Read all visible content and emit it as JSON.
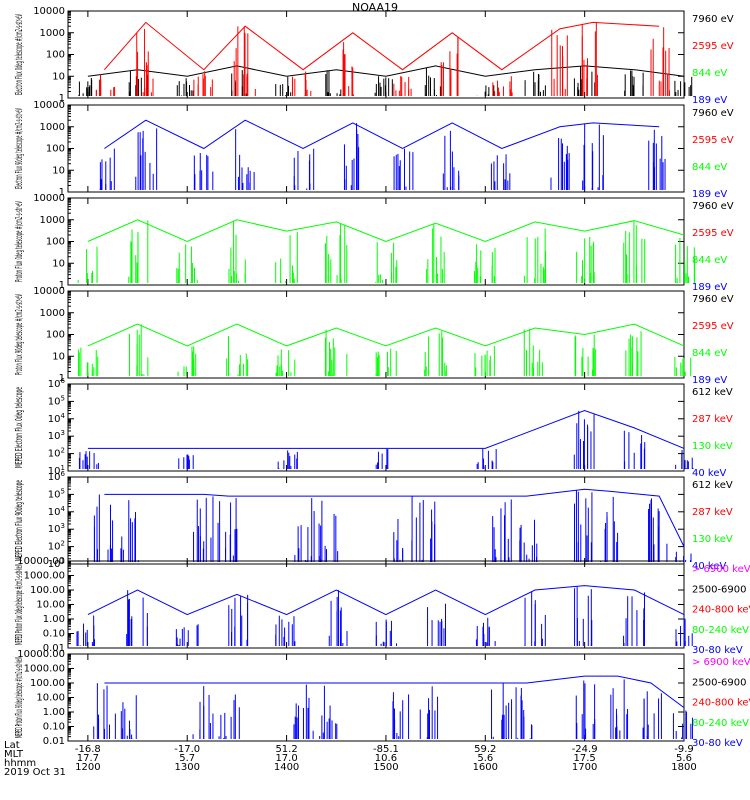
{
  "title": "NOAA19",
  "date": "2019 Oct 31",
  "bottom_axis": {
    "row_labels": [
      "Lat",
      "MLT",
      "hhmm"
    ],
    "lat": [
      "-16.8",
      "-17.0",
      "51.2",
      "-85.1",
      "59.2",
      "-24.9",
      "-9.9"
    ],
    "mlt": [
      "17.7",
      "5.7",
      "17.0",
      "10.6",
      "5.6",
      "17.5",
      "5.6"
    ],
    "hhmm": [
      "1200",
      "1300",
      "1400",
      "1500",
      "1600",
      "1700",
      "1800"
    ]
  },
  "colors": {
    "black": "#000000",
    "red": "#ff0000",
    "green": "#00ff00",
    "blue": "#0000ff",
    "magenta": "#ff00ff"
  },
  "chart_data": [
    {
      "type": "line",
      "ylabel": "Electron Flux 0deg telescope #/cm2-s-str-eV",
      "yscale": "log",
      "ylim": [
        1,
        10000
      ],
      "yticks": [
        "1",
        "10",
        "100",
        "1000",
        "10000"
      ],
      "legend": [
        {
          "label": "7960 eV",
          "color": "#000000"
        },
        {
          "label": "2595 eV",
          "color": "#ff0000"
        },
        {
          "label": "844 eV",
          "color": "#00ff00"
        },
        {
          "label": "189 eV",
          "color": "#0000ff"
        }
      ],
      "series": [
        {
          "name": "7960 eV",
          "x": [
            1200,
            1230,
            1300,
            1330,
            1400,
            1430,
            1500,
            1530,
            1600,
            1630,
            1700,
            1730,
            1800
          ],
          "y": [
            10,
            20,
            10,
            30,
            10,
            20,
            10,
            30,
            10,
            20,
            30,
            20,
            10
          ]
        },
        {
          "name": "2595 eV",
          "x": [
            1210,
            1235,
            1310,
            1335,
            1410,
            1440,
            1510,
            1540,
            1610,
            1645,
            1705,
            1745
          ],
          "y": [
            20,
            3000,
            20,
            2000,
            20,
            1000,
            20,
            1000,
            20,
            1500,
            3000,
            2000
          ]
        }
      ]
    },
    {
      "type": "line",
      "ylabel": "Electron Flux 90deg telescope #/cm2-s-str-eV",
      "yscale": "log",
      "ylim": [
        1,
        10000
      ],
      "yticks": [
        "1",
        "10",
        "100",
        "1000",
        "10000"
      ],
      "legend": [
        {
          "label": "7960 eV",
          "color": "#000000"
        },
        {
          "label": "2595 eV",
          "color": "#ff0000"
        },
        {
          "label": "844 eV",
          "color": "#00ff00"
        },
        {
          "label": "189 eV",
          "color": "#0000ff"
        }
      ],
      "series": [
        {
          "name": "189 eV",
          "x": [
            1210,
            1235,
            1310,
            1335,
            1410,
            1440,
            1510,
            1540,
            1610,
            1645,
            1705,
            1745
          ],
          "y": [
            100,
            2000,
            100,
            2000,
            100,
            1500,
            100,
            1500,
            100,
            1000,
            1500,
            1000
          ]
        }
      ]
    },
    {
      "type": "line",
      "ylabel": "Proton Flux 0deg telescope #/cm2-s-str-eV",
      "yscale": "log",
      "ylim": [
        1,
        10000
      ],
      "yticks": [
        "1",
        "10",
        "100",
        "1000",
        "10000"
      ],
      "legend": [
        {
          "label": "7960 eV",
          "color": "#000000"
        },
        {
          "label": "2595 eV",
          "color": "#ff0000"
        },
        {
          "label": "844 eV",
          "color": "#00ff00"
        },
        {
          "label": "189 eV",
          "color": "#0000ff"
        }
      ],
      "series": [
        {
          "name": "844 eV",
          "x": [
            1200,
            1230,
            1300,
            1330,
            1400,
            1430,
            1500,
            1530,
            1600,
            1630,
            1700,
            1730,
            1800
          ],
          "y": [
            100,
            1000,
            100,
            1000,
            300,
            800,
            100,
            700,
            100,
            800,
            300,
            900,
            200
          ]
        }
      ]
    },
    {
      "type": "line",
      "ylabel": "Proton Flux 90deg telescope #/cm2-s-str-eV",
      "yscale": "log",
      "ylim": [
        1,
        10000
      ],
      "yticks": [
        "1",
        "10",
        "100",
        "1000",
        "10000"
      ],
      "legend": [
        {
          "label": "7960 eV",
          "color": "#000000"
        },
        {
          "label": "2595 eV",
          "color": "#ff0000"
        },
        {
          "label": "844 eV",
          "color": "#00ff00"
        },
        {
          "label": "189 eV",
          "color": "#0000ff"
        }
      ],
      "series": [
        {
          "name": "844 eV",
          "x": [
            1200,
            1230,
            1300,
            1330,
            1400,
            1430,
            1500,
            1530,
            1600,
            1630,
            1700,
            1730,
            1800
          ],
          "y": [
            30,
            300,
            30,
            300,
            30,
            200,
            30,
            200,
            30,
            200,
            100,
            300,
            30
          ]
        }
      ]
    },
    {
      "type": "line",
      "ylabel": "MEPED Electron Flux 0deg telescope",
      "yscale": "log",
      "ylim": [
        10,
        1000000
      ],
      "yticks": [
        "10^1",
        "10^2",
        "10^3",
        "10^4",
        "10^5",
        "10^6"
      ],
      "legend": [
        {
          "label": "612 keV",
          "color": "#000000"
        },
        {
          "label": "287 keV",
          "color": "#ff0000"
        },
        {
          "label": "130 keV",
          "color": "#00ff00"
        },
        {
          "label": "40 keV",
          "color": "#0000ff"
        }
      ],
      "series": [
        {
          "name": "40 keV",
          "x": [
            1200,
            1300,
            1400,
            1500,
            1600,
            1700,
            1730,
            1800
          ],
          "y": [
            200,
            200,
            200,
            200,
            200,
            30000,
            3000,
            200
          ]
        }
      ]
    },
    {
      "type": "line",
      "ylabel": "MEPED Electron Flux 90deg telescope",
      "yscale": "log",
      "ylim": [
        10,
        1000000
      ],
      "yticks": [
        "10^1",
        "10^2",
        "10^3",
        "10^4",
        "10^5",
        "10^6"
      ],
      "legend": [
        {
          "label": "612 keV",
          "color": "#000000"
        },
        {
          "label": "287 keV",
          "color": "#ff0000"
        },
        {
          "label": "130 keV",
          "color": "#00ff00"
        },
        {
          "label": "40 keV",
          "color": "#0000ff"
        }
      ],
      "series": [
        {
          "name": "40 keV",
          "x": [
            1210,
            1225,
            1310,
            1325,
            1410,
            1425,
            1510,
            1525,
            1610,
            1625,
            1700,
            1715,
            1745,
            1800
          ],
          "y": [
            100000,
            100000,
            100000,
            80000,
            80000,
            80000,
            80000,
            80000,
            80000,
            80000,
            200000,
            150000,
            80000,
            100
          ]
        }
      ]
    },
    {
      "type": "line",
      "ylabel": "MEPED Proton Flux 0deg telescope #/cm2-s-str-keV",
      "yscale": "log",
      "ylim": [
        0.01,
        10000
      ],
      "yticks": [
        "0.01",
        "0.10",
        "1.00",
        "10.00",
        "100.00",
        "1000.00",
        "10000.00"
      ],
      "legend": [
        {
          "label": "> 6900 keV",
          "color": "#ff00ff"
        },
        {
          "label": "2500-6900",
          "color": "#000000"
        },
        {
          "label": "240-800 keV",
          "color": "#ff0000"
        },
        {
          "label": "80-240 keV",
          "color": "#00ff00"
        },
        {
          "label": "30-80 keV",
          "color": "#0000ff"
        }
      ],
      "series": [
        {
          "name": "30-80 keV",
          "x": [
            1200,
            1230,
            1300,
            1330,
            1400,
            1430,
            1500,
            1530,
            1600,
            1630,
            1700,
            1730,
            1800
          ],
          "y": [
            2,
            100,
            2,
            50,
            2,
            100,
            2,
            100,
            2,
            100,
            200,
            100,
            2
          ]
        }
      ]
    },
    {
      "type": "line",
      "ylabel": "MEPED Proton Flux 90deg telescope #/cm2-s-str-keV",
      "yscale": "log",
      "ylim": [
        0.01,
        10000
      ],
      "yticks": [
        "0.01",
        "0.10",
        "1.00",
        "10.00",
        "100.00",
        "1000.00",
        "10000.00"
      ],
      "legend": [
        {
          "label": "> 6900 keV",
          "color": "#ff00ff"
        },
        {
          "label": "2500-6900",
          "color": "#000000"
        },
        {
          "label": "240-800 keV",
          "color": "#ff0000"
        },
        {
          "label": "80-240 keV",
          "color": "#00ff00"
        },
        {
          "label": "30-80 keV",
          "color": "#0000ff"
        }
      ],
      "series": [
        {
          "name": "30-80 keV",
          "x": [
            1210,
            1225,
            1310,
            1325,
            1410,
            1425,
            1510,
            1525,
            1610,
            1625,
            1700,
            1720,
            1740,
            1800
          ],
          "y": [
            100,
            100,
            100,
            100,
            100,
            100,
            100,
            100,
            100,
            100,
            300,
            300,
            100,
            2
          ]
        }
      ]
    }
  ]
}
